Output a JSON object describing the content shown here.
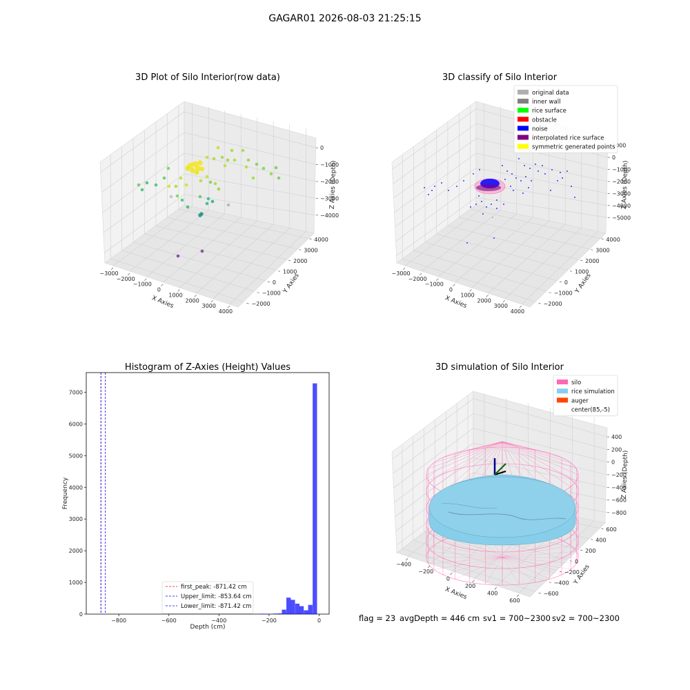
{
  "figure": {
    "suptitle": "GAGAR01 2026-08-03 21:25:15",
    "footer": {
      "flag": "flag = 23",
      "avg": "avgDepth = 446 cm",
      "sv1": "sv1 = 700~2300",
      "sv2": "sv2 = 700~2300"
    }
  },
  "chart_data": [
    {
      "type": "scatter",
      "panel": "raw",
      "title": "3D Plot of Silo Interior(row data)",
      "xlabel": "X Axies",
      "ylabel": "Y Axies",
      "zlabel": "Z Axies (Depth)",
      "x_ticks": [
        "−3000",
        "−2000",
        "−1000",
        "0",
        "1000",
        "2000",
        "3000",
        "4000"
      ],
      "y_ticks": [
        "−2000",
        "−1000",
        "0",
        "1000",
        "2000",
        "3000",
        "4000"
      ],
      "z_ticks": [
        "−4000",
        "−3000",
        "−2000",
        "−1000",
        "0"
      ],
      "zlim": [
        -4300,
        200
      ],
      "colormap": "viridis"
    },
    {
      "type": "scatter",
      "panel": "classify",
      "title": "3D classify of Silo Interior",
      "xlabel": "X Axies",
      "ylabel": "Y Axies",
      "zlabel": "Z Axies (Depth)",
      "x_ticks": [
        "−3000",
        "−2000",
        "−1000",
        "0",
        "1000",
        "2000",
        "3000",
        "4000"
      ],
      "y_ticks": [
        "−2000",
        "−1000",
        "0",
        "1000",
        "2000",
        "3000",
        "4000"
      ],
      "z_ticks": [
        "−5000",
        "−4000",
        "−3000",
        "−2000",
        "−1000",
        "0",
        "1000"
      ],
      "zlim": [
        -5300,
        1200
      ],
      "legend_position": "upper-right",
      "legend": [
        {
          "label": "original data",
          "color": "#b0b0b0"
        },
        {
          "label": "inner wall",
          "color": "#808080"
        },
        {
          "label": "rice surface",
          "color": "#00ff00"
        },
        {
          "label": "obstacle",
          "color": "#ff0000"
        },
        {
          "label": "noise",
          "color": "#0000ff"
        },
        {
          "label": "interpolated rice surface",
          "color": "#800080"
        },
        {
          "label": "symmetric generated points",
          "color": "#ffff00"
        }
      ]
    },
    {
      "type": "bar",
      "panel": "histogram",
      "title": "Histogram of Z-Axies (Height) Values",
      "xlabel": "Depth (cm)",
      "ylabel": "Frequency",
      "xlim": [
        -930,
        40
      ],
      "ylim": [
        0,
        7620
      ],
      "x_ticks": [
        -800,
        -600,
        -400,
        -200,
        0
      ],
      "y_ticks": [
        0,
        1000,
        2000,
        3000,
        4000,
        5000,
        6000,
        7000
      ],
      "bar_color": "#0000ff",
      "bin_width": 17.5,
      "bins": [
        {
          "x": -227,
          "count": 12
        },
        {
          "x": -210,
          "count": 10
        },
        {
          "x": -175,
          "count": 15
        },
        {
          "x": -157,
          "count": 20
        },
        {
          "x": -140,
          "count": 140
        },
        {
          "x": -122,
          "count": 520
        },
        {
          "x": -105,
          "count": 450
        },
        {
          "x": -87,
          "count": 330
        },
        {
          "x": -70,
          "count": 250
        },
        {
          "x": -52,
          "count": 120
        },
        {
          "x": -35,
          "count": 290
        },
        {
          "x": -17,
          "count": 7280
        }
      ],
      "lines": [
        {
          "label": "first_peak: -871.42 cm",
          "x": -871.42,
          "color": "#ff0000"
        },
        {
          "label": "Upper_limit: -853.64 cm",
          "x": -853.64,
          "color": "#0000ff"
        },
        {
          "label": "Lower_limit: -871.42 cm",
          "x": -871.42,
          "color": "#0000ff"
        }
      ],
      "legend_position": "lower-center"
    },
    {
      "type": "surface",
      "panel": "simulation",
      "title": "3D simulation of Silo Interior",
      "xlabel": "X Axies",
      "ylabel": "Y Axies",
      "zlabel": "Z Axies (Depth)",
      "x_ticks": [
        "−400",
        "−200",
        "0",
        "200",
        "400",
        "600"
      ],
      "y_ticks": [
        "−600",
        "−400",
        "−200",
        "0",
        "200",
        "400",
        "600"
      ],
      "z_ticks": [
        "−800",
        "−600",
        "−400",
        "−200",
        "0",
        "200",
        "400"
      ],
      "zlim": [
        -900,
        450
      ],
      "legend_position": "upper-right",
      "legend": [
        {
          "label": "silo",
          "color": "#ff69b4"
        },
        {
          "label": "rice simulation",
          "color": "#87ceeb"
        },
        {
          "label": "auger",
          "color": "#ff4500"
        },
        {
          "label": "center(85,-5)",
          "color": "#ffffff"
        }
      ]
    }
  ]
}
